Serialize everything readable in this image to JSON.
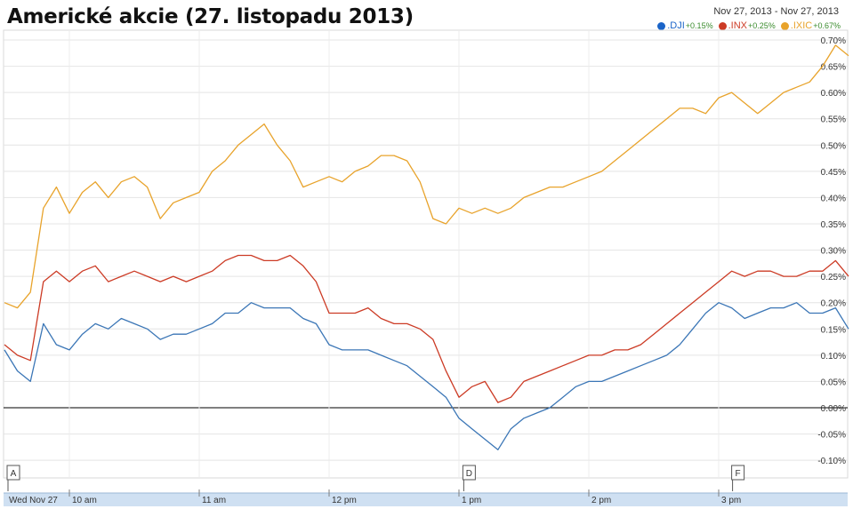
{
  "title": "Americké akcie (27. listopadu 2013)",
  "date_range": "Nov 27, 2013  -  Nov 27, 2013",
  "colors": {
    "DJI": "#3b76b6",
    "INX": "#cc3b25",
    "IXIC": "#e8a32b"
  },
  "chart_data": {
    "type": "line",
    "title": "Americké akcie (27. listopadu 2013)",
    "xlabel": "",
    "ylabel": "",
    "ylim": [
      -0.12,
      0.72
    ],
    "yticks": [
      "0.70%",
      "0.65%",
      "0.60%",
      "0.55%",
      "0.50%",
      "0.45%",
      "0.40%",
      "0.35%",
      "0.30%",
      "0.25%",
      "0.20%",
      "0.15%",
      "0.10%",
      "0.05%",
      "0.00%",
      "-0.05%",
      "-0.10%"
    ],
    "ytick_values": [
      0.7,
      0.65,
      0.6,
      0.55,
      0.5,
      0.45,
      0.4,
      0.35,
      0.3,
      0.25,
      0.2,
      0.15,
      0.1,
      0.05,
      0.0,
      -0.05,
      -0.1
    ],
    "xticks": [
      "Wed Nov 27",
      "10 am",
      "11 am",
      "12 pm",
      "1 pm",
      "2 pm",
      "3 pm"
    ],
    "xtick_times": [
      9.5,
      10,
      11,
      12,
      13,
      14,
      15
    ],
    "xlim": [
      9.5,
      16
    ],
    "grid": true,
    "legend_position": "top-right",
    "markers": [
      {
        "label": "A",
        "time": 9.55
      },
      {
        "label": "D",
        "time": 13.03
      },
      {
        "label": "F",
        "time": 15.1
      }
    ],
    "x": [
      9.5,
      9.6,
      9.7,
      9.8,
      9.9,
      10.0,
      10.1,
      10.2,
      10.3,
      10.4,
      10.5,
      10.6,
      10.7,
      10.8,
      10.9,
      11.0,
      11.1,
      11.2,
      11.3,
      11.4,
      11.5,
      11.6,
      11.7,
      11.8,
      11.9,
      12.0,
      12.1,
      12.2,
      12.3,
      12.4,
      12.5,
      12.6,
      12.7,
      12.8,
      12.9,
      13.0,
      13.1,
      13.2,
      13.3,
      13.4,
      13.5,
      13.6,
      13.7,
      13.8,
      13.9,
      14.0,
      14.1,
      14.2,
      14.3,
      14.4,
      14.5,
      14.6,
      14.7,
      14.8,
      14.9,
      15.0,
      15.1,
      15.2,
      15.3,
      15.4,
      15.5,
      15.6,
      15.7,
      15.8,
      15.9,
      16.0
    ],
    "series": [
      {
        "name": ".DJI",
        "change": "+0.15%",
        "values": [
          0.11,
          0.07,
          0.05,
          0.16,
          0.12,
          0.11,
          0.14,
          0.16,
          0.15,
          0.17,
          0.16,
          0.15,
          0.13,
          0.14,
          0.14,
          0.15,
          0.16,
          0.18,
          0.18,
          0.2,
          0.19,
          0.19,
          0.19,
          0.17,
          0.16,
          0.12,
          0.11,
          0.11,
          0.11,
          0.1,
          0.09,
          0.08,
          0.06,
          0.04,
          0.02,
          -0.02,
          -0.04,
          -0.06,
          -0.08,
          -0.04,
          -0.02,
          -0.01,
          0.0,
          0.02,
          0.04,
          0.05,
          0.05,
          0.06,
          0.07,
          0.08,
          0.09,
          0.1,
          0.12,
          0.15,
          0.18,
          0.2,
          0.19,
          0.17,
          0.18,
          0.19,
          0.19,
          0.2,
          0.18,
          0.18,
          0.19,
          0.15
        ]
      },
      {
        "name": ".INX",
        "change": "+0.25%",
        "values": [
          0.12,
          0.1,
          0.09,
          0.24,
          0.26,
          0.24,
          0.26,
          0.27,
          0.24,
          0.25,
          0.26,
          0.25,
          0.24,
          0.25,
          0.24,
          0.25,
          0.26,
          0.28,
          0.29,
          0.29,
          0.28,
          0.28,
          0.29,
          0.27,
          0.24,
          0.18,
          0.18,
          0.18,
          0.19,
          0.17,
          0.16,
          0.16,
          0.15,
          0.13,
          0.07,
          0.02,
          0.04,
          0.05,
          0.01,
          0.02,
          0.05,
          0.06,
          0.07,
          0.08,
          0.09,
          0.1,
          0.1,
          0.11,
          0.11,
          0.12,
          0.14,
          0.16,
          0.18,
          0.2,
          0.22,
          0.24,
          0.26,
          0.25,
          0.26,
          0.26,
          0.25,
          0.25,
          0.26,
          0.26,
          0.28,
          0.25
        ]
      },
      {
        "name": ".IXIC",
        "change": "+0.67%",
        "values": [
          0.2,
          0.19,
          0.22,
          0.38,
          0.42,
          0.37,
          0.41,
          0.43,
          0.4,
          0.43,
          0.44,
          0.42,
          0.36,
          0.39,
          0.4,
          0.41,
          0.45,
          0.47,
          0.5,
          0.52,
          0.54,
          0.5,
          0.47,
          0.42,
          0.43,
          0.44,
          0.43,
          0.45,
          0.46,
          0.48,
          0.48,
          0.47,
          0.43,
          0.36,
          0.35,
          0.38,
          0.37,
          0.38,
          0.37,
          0.38,
          0.4,
          0.41,
          0.42,
          0.42,
          0.43,
          0.44,
          0.45,
          0.47,
          0.49,
          0.51,
          0.53,
          0.55,
          0.57,
          0.57,
          0.56,
          0.59,
          0.6,
          0.58,
          0.56,
          0.58,
          0.6,
          0.61,
          0.62,
          0.65,
          0.69,
          0.67
        ]
      }
    ]
  }
}
